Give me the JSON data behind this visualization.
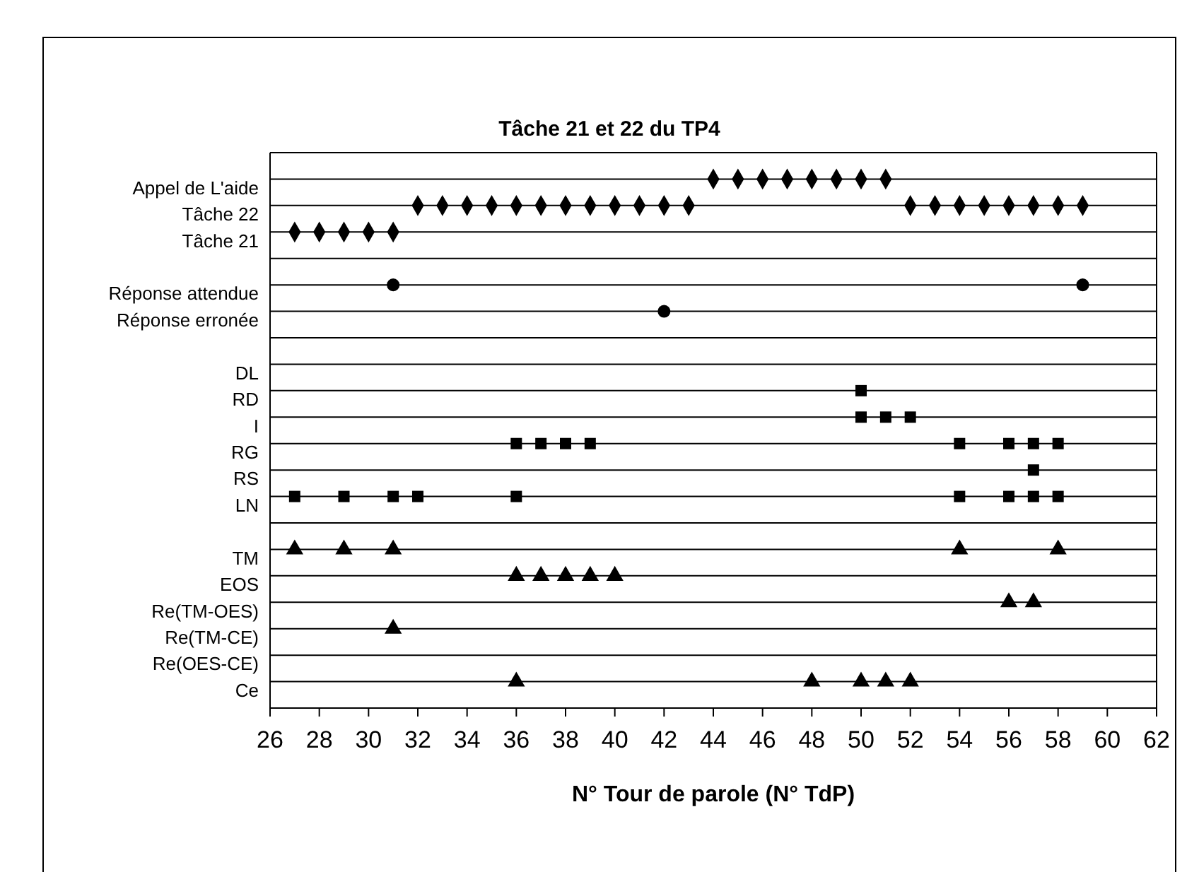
{
  "chart_data": {
    "type": "scatter",
    "orientation": "horizontal",
    "title": "Tâche 21 et 22 du TP4",
    "xlabel": "N° Tour de parole (N° TdP)",
    "xlim": [
      26,
      62
    ],
    "xticks": [
      26,
      28,
      30,
      32,
      34,
      36,
      38,
      40,
      42,
      44,
      46,
      48,
      50,
      52,
      54,
      56,
      58,
      60,
      62
    ],
    "categories": [
      "Appel de L'aide",
      "Tâche 22",
      "Tâche 21",
      null,
      "Réponse attendue",
      "Réponse erronée",
      null,
      "DL",
      "RD",
      "I",
      "RG",
      "RS",
      "LN",
      null,
      "TM",
      "EOS",
      "Re(TM-OES)",
      "Re(TM-CE)",
      "Re(OES-CE)",
      "Ce"
    ],
    "grid": "y",
    "legend": false,
    "series": [
      {
        "color": "#000000",
        "marker": "diamond",
        "values": [
          44,
          32,
          27,
          null,
          null,
          null,
          null,
          null,
          null,
          null,
          null,
          null,
          null,
          null,
          null,
          null,
          null,
          null,
          null,
          null
        ]
      },
      {
        "color": "#000000",
        "marker": "diamond",
        "values": [
          45,
          33,
          28,
          null,
          null,
          null,
          null,
          null,
          null,
          null,
          null,
          null,
          null,
          null,
          null,
          null,
          null,
          null,
          null,
          null
        ]
      },
      {
        "color": "#000000",
        "marker": "diamond",
        "values": [
          46,
          34,
          29,
          null,
          null,
          null,
          null,
          null,
          null,
          null,
          null,
          null,
          null,
          null,
          null,
          null,
          null,
          null,
          null,
          null
        ]
      },
      {
        "color": "#000000",
        "marker": "diamond",
        "values": [
          47,
          35,
          30,
          null,
          null,
          null,
          null,
          null,
          null,
          null,
          null,
          null,
          null,
          null,
          null,
          null,
          null,
          null,
          null,
          null
        ]
      },
      {
        "color": "#000000",
        "marker": "diamond",
        "values": [
          48,
          36,
          31,
          null,
          null,
          null,
          null,
          null,
          null,
          null,
          null,
          null,
          null,
          null,
          null,
          null,
          null,
          null,
          null,
          null
        ]
      },
      {
        "color": "#000000",
        "marker": "diamond",
        "values": [
          49,
          37,
          null,
          null,
          null,
          null,
          null,
          null,
          null,
          null,
          null,
          null,
          null,
          null,
          null,
          null,
          null,
          null,
          null,
          null
        ]
      },
      {
        "color": "#000000",
        "marker": "diamond",
        "values": [
          50,
          38,
          null,
          null,
          null,
          null,
          null,
          null,
          null,
          null,
          null,
          null,
          null,
          null,
          null,
          null,
          null,
          null,
          null,
          null
        ]
      },
      {
        "color": "#000000",
        "marker": "diamond",
        "values": [
          51,
          39,
          null,
          null,
          null,
          null,
          null,
          null,
          null,
          null,
          null,
          null,
          null,
          null,
          null,
          null,
          null,
          null,
          null,
          null
        ]
      },
      {
        "color": "#000000",
        "marker": "diamond",
        "values": [
          null,
          40,
          null,
          null,
          null,
          null,
          null,
          null,
          null,
          null,
          null,
          null,
          null,
          null,
          null,
          null,
          null,
          null,
          null,
          null
        ]
      },
      {
        "color": "#000000",
        "marker": "diamond",
        "values": [
          null,
          41,
          null,
          null,
          null,
          null,
          null,
          null,
          null,
          null,
          null,
          null,
          null,
          null,
          null,
          null,
          null,
          null,
          null,
          null
        ]
      },
      {
        "color": "#000000",
        "marker": "diamond",
        "values": [
          null,
          42,
          null,
          null,
          null,
          null,
          null,
          null,
          null,
          null,
          null,
          null,
          null,
          null,
          null,
          null,
          null,
          null,
          null,
          null
        ]
      },
      {
        "color": "#000000",
        "marker": "diamond",
        "values": [
          null,
          43,
          null,
          null,
          null,
          null,
          null,
          null,
          null,
          null,
          null,
          null,
          null,
          null,
          null,
          null,
          null,
          null,
          null,
          null
        ]
      },
      {
        "color": "#000000",
        "marker": "diamond",
        "values": [
          null,
          52,
          null,
          null,
          null,
          null,
          null,
          null,
          null,
          null,
          null,
          null,
          null,
          null,
          null,
          null,
          null,
          null,
          null,
          null
        ]
      },
      {
        "color": "#000000",
        "marker": "diamond",
        "values": [
          null,
          53,
          null,
          null,
          null,
          null,
          null,
          null,
          null,
          null,
          null,
          null,
          null,
          null,
          null,
          null,
          null,
          null,
          null,
          null
        ]
      },
      {
        "color": "#000000",
        "marker": "diamond",
        "values": [
          null,
          54,
          null,
          null,
          null,
          null,
          null,
          null,
          null,
          null,
          null,
          null,
          null,
          null,
          null,
          null,
          null,
          null,
          null,
          null
        ]
      },
      {
        "color": "#000000",
        "marker": "diamond",
        "values": [
          null,
          55,
          null,
          null,
          null,
          null,
          null,
          null,
          null,
          null,
          null,
          null,
          null,
          null,
          null,
          null,
          null,
          null,
          null,
          null
        ]
      },
      {
        "color": "#000000",
        "marker": "diamond",
        "values": [
          null,
          56,
          null,
          null,
          null,
          null,
          null,
          null,
          null,
          null,
          null,
          null,
          null,
          null,
          null,
          null,
          null,
          null,
          null,
          null
        ]
      },
      {
        "color": "#000000",
        "marker": "diamond",
        "values": [
          null,
          57,
          null,
          null,
          null,
          null,
          null,
          null,
          null,
          null,
          null,
          null,
          null,
          null,
          null,
          null,
          null,
          null,
          null,
          null
        ]
      },
      {
        "color": "#000000",
        "marker": "diamond",
        "values": [
          null,
          58,
          null,
          null,
          null,
          null,
          null,
          null,
          null,
          null,
          null,
          null,
          null,
          null,
          null,
          null,
          null,
          null,
          null,
          null
        ]
      },
      {
        "color": "#000000",
        "marker": "diamond",
        "values": [
          null,
          59,
          null,
          null,
          null,
          null,
          null,
          null,
          null,
          null,
          null,
          null,
          null,
          null,
          null,
          null,
          null,
          null,
          null,
          null
        ]
      },
      {
        "color": "#000000",
        "marker": "circle",
        "values": [
          null,
          null,
          null,
          null,
          31,
          42,
          null,
          null,
          null,
          null,
          null,
          null,
          null,
          null,
          null,
          null,
          null,
          null,
          null,
          null
        ]
      },
      {
        "color": "#000000",
        "marker": "circle",
        "values": [
          null,
          null,
          null,
          null,
          59,
          null,
          null,
          null,
          null,
          null,
          null,
          null,
          null,
          null,
          null,
          null,
          null,
          null,
          null,
          null
        ]
      },
      {
        "color": "#000000",
        "marker": "square",
        "values": [
          null,
          null,
          null,
          null,
          null,
          null,
          null,
          null,
          50,
          50,
          36,
          57,
          27,
          null,
          null,
          null,
          null,
          null,
          null,
          null
        ]
      },
      {
        "color": "#000000",
        "marker": "square",
        "values": [
          null,
          null,
          null,
          null,
          null,
          null,
          null,
          null,
          null,
          51,
          37,
          null,
          29,
          null,
          null,
          null,
          null,
          null,
          null,
          null
        ]
      },
      {
        "color": "#000000",
        "marker": "square",
        "values": [
          null,
          null,
          null,
          null,
          null,
          null,
          null,
          null,
          null,
          52,
          38,
          null,
          31,
          null,
          null,
          null,
          null,
          null,
          null,
          null
        ]
      },
      {
        "color": "#000000",
        "marker": "square",
        "values": [
          null,
          null,
          null,
          null,
          null,
          null,
          null,
          null,
          null,
          null,
          39,
          null,
          32,
          null,
          null,
          null,
          null,
          null,
          null,
          null
        ]
      },
      {
        "color": "#000000",
        "marker": "square",
        "values": [
          null,
          null,
          null,
          null,
          null,
          null,
          null,
          null,
          null,
          null,
          54,
          null,
          36,
          null,
          null,
          null,
          null,
          null,
          null,
          null
        ]
      },
      {
        "color": "#000000",
        "marker": "square",
        "values": [
          null,
          null,
          null,
          null,
          null,
          null,
          null,
          null,
          null,
          null,
          56,
          null,
          54,
          null,
          null,
          null,
          null,
          null,
          null,
          null
        ]
      },
      {
        "color": "#000000",
        "marker": "square",
        "values": [
          null,
          null,
          null,
          null,
          null,
          null,
          null,
          null,
          null,
          null,
          57,
          null,
          56,
          null,
          null,
          null,
          null,
          null,
          null,
          null
        ]
      },
      {
        "color": "#000000",
        "marker": "square",
        "values": [
          null,
          null,
          null,
          null,
          null,
          null,
          null,
          null,
          null,
          null,
          58,
          null,
          57,
          null,
          null,
          null,
          null,
          null,
          null,
          null
        ]
      },
      {
        "color": "#000000",
        "marker": "square",
        "values": [
          null,
          null,
          null,
          null,
          null,
          null,
          null,
          null,
          null,
          null,
          null,
          null,
          58,
          null,
          null,
          null,
          null,
          null,
          null,
          null
        ]
      },
      {
        "color": "#000000",
        "marker": "triangle",
        "values": [
          null,
          null,
          null,
          null,
          null,
          null,
          null,
          null,
          null,
          null,
          null,
          null,
          null,
          null,
          27,
          36,
          56,
          31,
          null,
          36
        ]
      },
      {
        "color": "#000000",
        "marker": "triangle",
        "values": [
          null,
          null,
          null,
          null,
          null,
          null,
          null,
          null,
          null,
          null,
          null,
          null,
          null,
          null,
          29,
          37,
          57,
          null,
          null,
          48
        ]
      },
      {
        "color": "#000000",
        "marker": "triangle",
        "values": [
          null,
          null,
          null,
          null,
          null,
          null,
          null,
          null,
          null,
          null,
          null,
          null,
          null,
          null,
          31,
          38,
          null,
          null,
          null,
          50
        ]
      },
      {
        "color": "#000000",
        "marker": "triangle",
        "values": [
          null,
          null,
          null,
          null,
          null,
          null,
          null,
          null,
          null,
          null,
          null,
          null,
          null,
          null,
          54,
          39,
          null,
          null,
          null,
          51
        ]
      },
      {
        "color": "#000000",
        "marker": "triangle",
        "values": [
          null,
          null,
          null,
          null,
          null,
          null,
          null,
          null,
          null,
          null,
          null,
          null,
          null,
          null,
          58,
          40,
          null,
          null,
          null,
          52
        ]
      }
    ]
  }
}
